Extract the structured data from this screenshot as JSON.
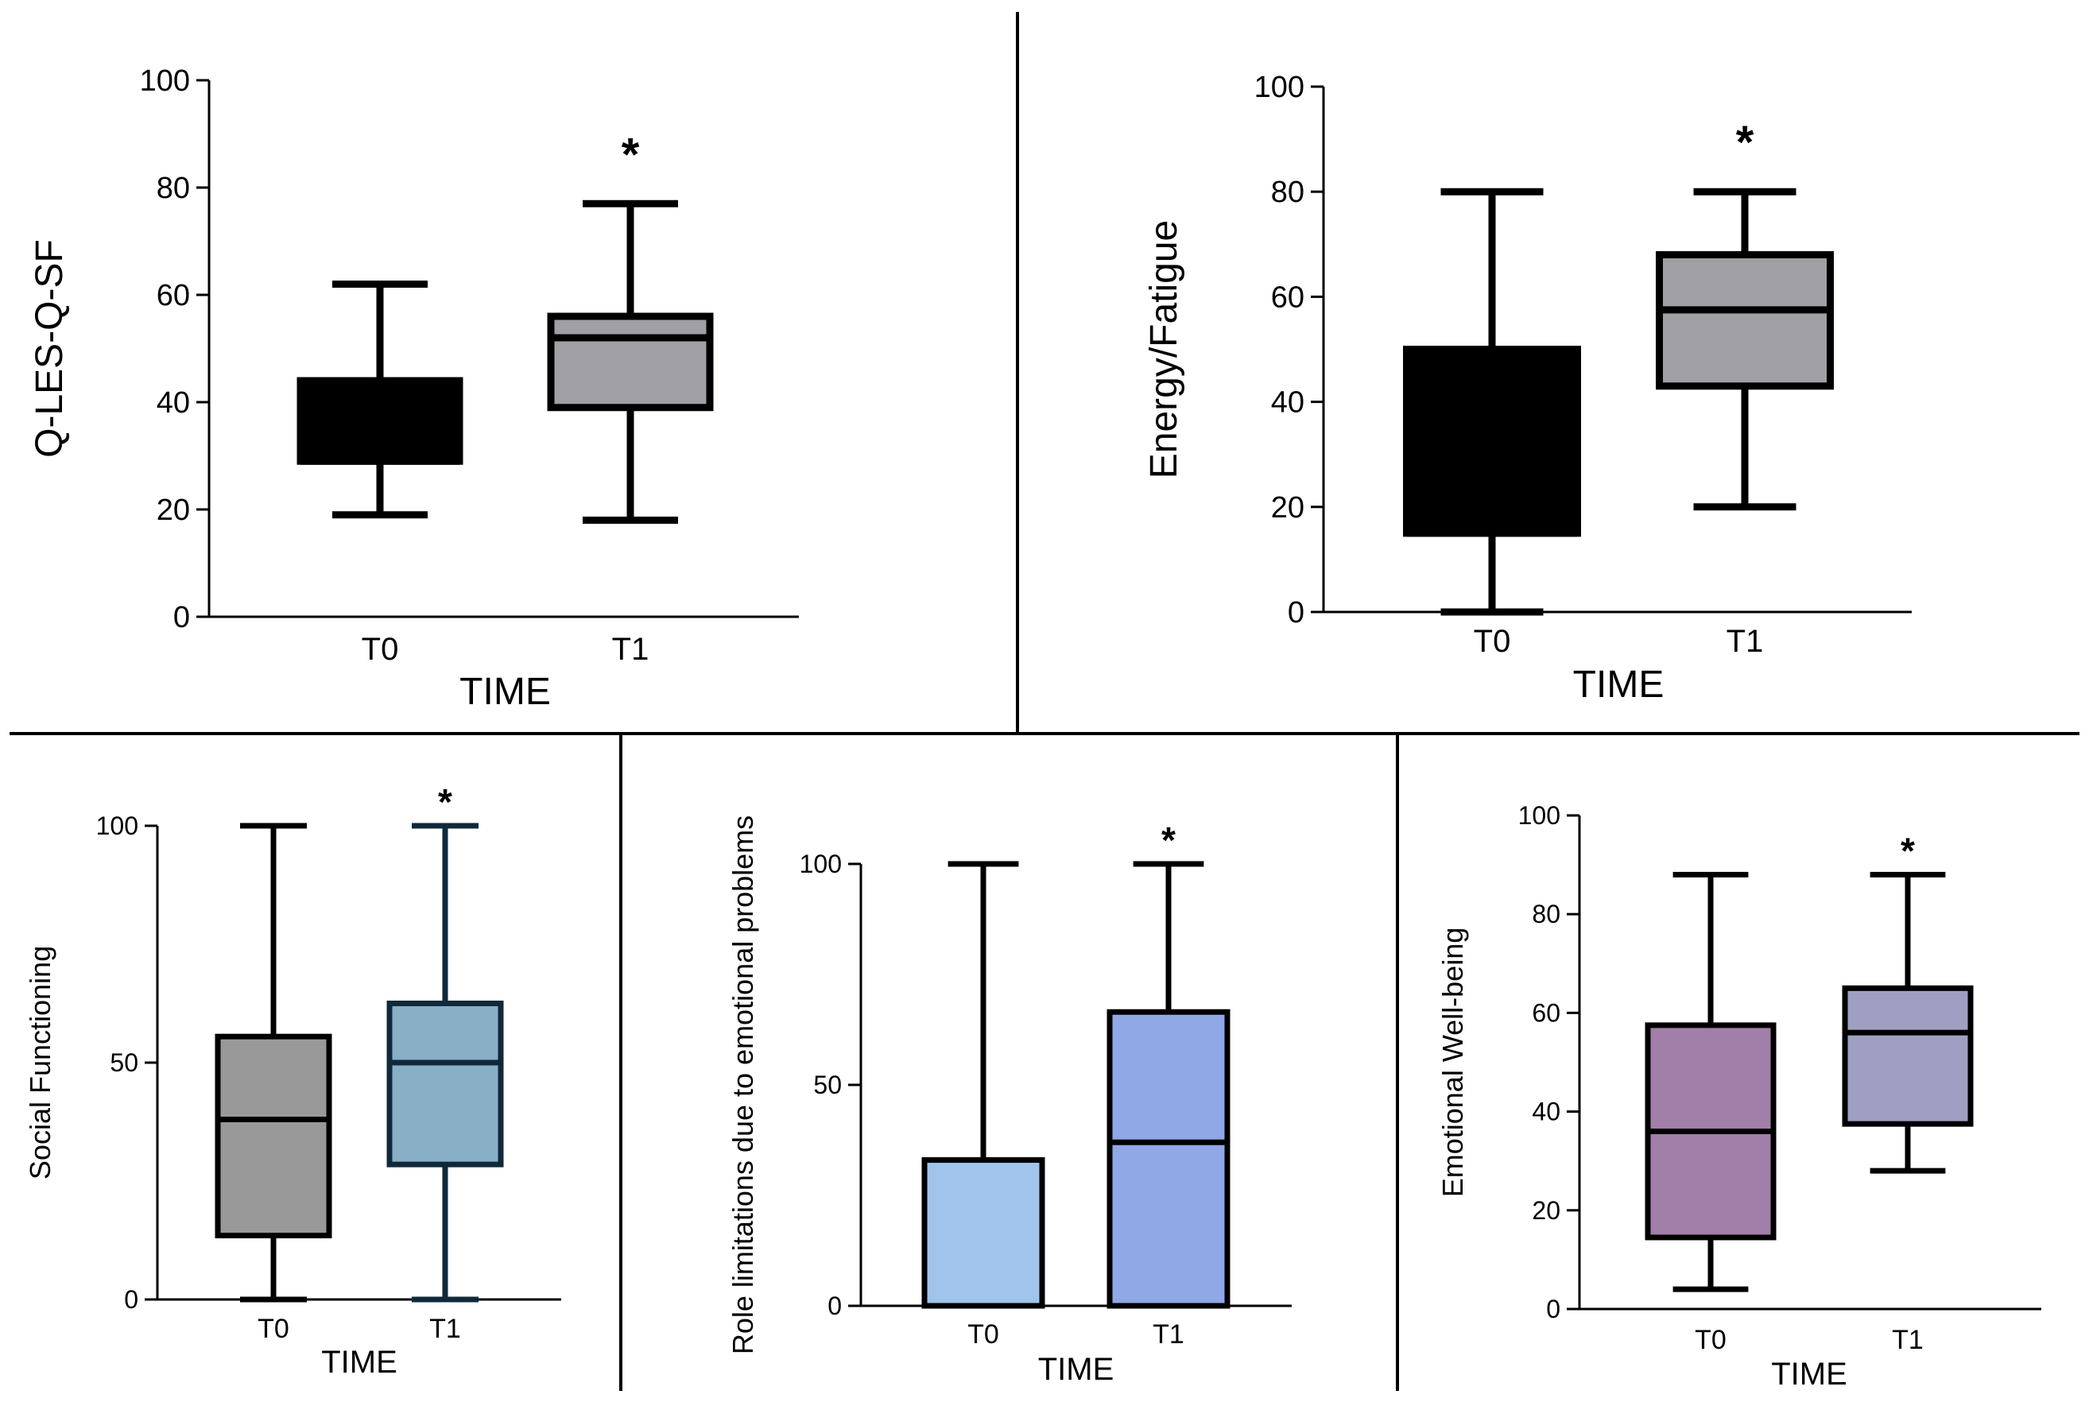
{
  "chart_data": [
    {
      "type": "boxplot",
      "ylabel": "Q-LES-Q-SF",
      "xlabel": "TIME",
      "ylim": [
        0,
        100
      ],
      "yticks": [
        0,
        20,
        40,
        60,
        80,
        100
      ],
      "categories": [
        "T0",
        "T1"
      ],
      "boxes": [
        {
          "label": "T0",
          "min": 19,
          "q1": 29,
          "median": 29,
          "q3": 44,
          "max": 62,
          "fill": "#000000",
          "edge": "#000000",
          "sig": ""
        },
        {
          "label": "T1",
          "min": 18,
          "q1": 39,
          "median": 52,
          "q3": 56,
          "max": 77,
          "fill": "#a0a0a4",
          "edge": "#000000",
          "sig": "*"
        }
      ]
    },
    {
      "type": "boxplot",
      "ylabel": "Energy/Fatigue",
      "xlabel": "TIME",
      "ylim": [
        0,
        100
      ],
      "yticks": [
        0,
        20,
        40,
        60,
        80,
        100
      ],
      "categories": [
        "T0",
        "T1"
      ],
      "boxes": [
        {
          "label": "T0",
          "min": 0,
          "q1": 15,
          "median": 15,
          "q3": 50,
          "max": 80,
          "fill": "#000000",
          "edge": "#000000",
          "sig": ""
        },
        {
          "label": "T1",
          "min": 20,
          "q1": 43,
          "median": 57.5,
          "q3": 68,
          "max": 80,
          "fill": "#a0a0a4",
          "edge": "#000000",
          "sig": "*"
        }
      ]
    },
    {
      "type": "boxplot",
      "ylabel": "Social Functioning",
      "xlabel": "TIME",
      "ylim": [
        0,
        100
      ],
      "yticks": [
        0,
        50,
        100
      ],
      "categories": [
        "T0",
        "T1"
      ],
      "boxes": [
        {
          "label": "T0",
          "min": 0,
          "q1": 13.5,
          "median": 38,
          "q3": 55.5,
          "max": 100,
          "fill": "#999999",
          "edge": "#000000",
          "sig": ""
        },
        {
          "label": "T1",
          "min": 0,
          "q1": 28.5,
          "median": 50,
          "q3": 62.5,
          "max": 100,
          "fill": "#88afc6",
          "edge": "#10293a",
          "sig": "*"
        }
      ]
    },
    {
      "type": "boxplot",
      "ylabel": "Role limitations due to emotional problems",
      "xlabel": "TIME",
      "ylim": [
        0,
        100
      ],
      "yticks": [
        0,
        50,
        100
      ],
      "categories": [
        "T0",
        "T1"
      ],
      "boxes": [
        {
          "label": "T0",
          "min": 0,
          "q1": 0,
          "median": 0,
          "q3": 33,
          "max": 100,
          "fill": "#a0c4ec",
          "edge": "#000000",
          "sig": ""
        },
        {
          "label": "T1",
          "min": 0,
          "q1": 0,
          "median": 37,
          "q3": 66.5,
          "max": 100,
          "fill": "#91a8e6",
          "edge": "#000000",
          "sig": "*"
        }
      ]
    },
    {
      "type": "boxplot",
      "ylabel": "Emotional Well-being",
      "xlabel": "TIME",
      "ylim": [
        0,
        100
      ],
      "yticks": [
        0,
        20,
        40,
        60,
        80,
        100
      ],
      "categories": [
        "T0",
        "T1"
      ],
      "boxes": [
        {
          "label": "T0",
          "min": 4,
          "q1": 14.5,
          "median": 36,
          "q3": 57.5,
          "max": 88,
          "fill": "#a17fa8",
          "edge": "#000000",
          "sig": ""
        },
        {
          "label": "T1",
          "min": 28,
          "q1": 37.5,
          "median": 56,
          "q3": 65,
          "max": 88,
          "fill": "#9f9fc1",
          "edge": "#000000",
          "sig": "*"
        }
      ]
    }
  ]
}
